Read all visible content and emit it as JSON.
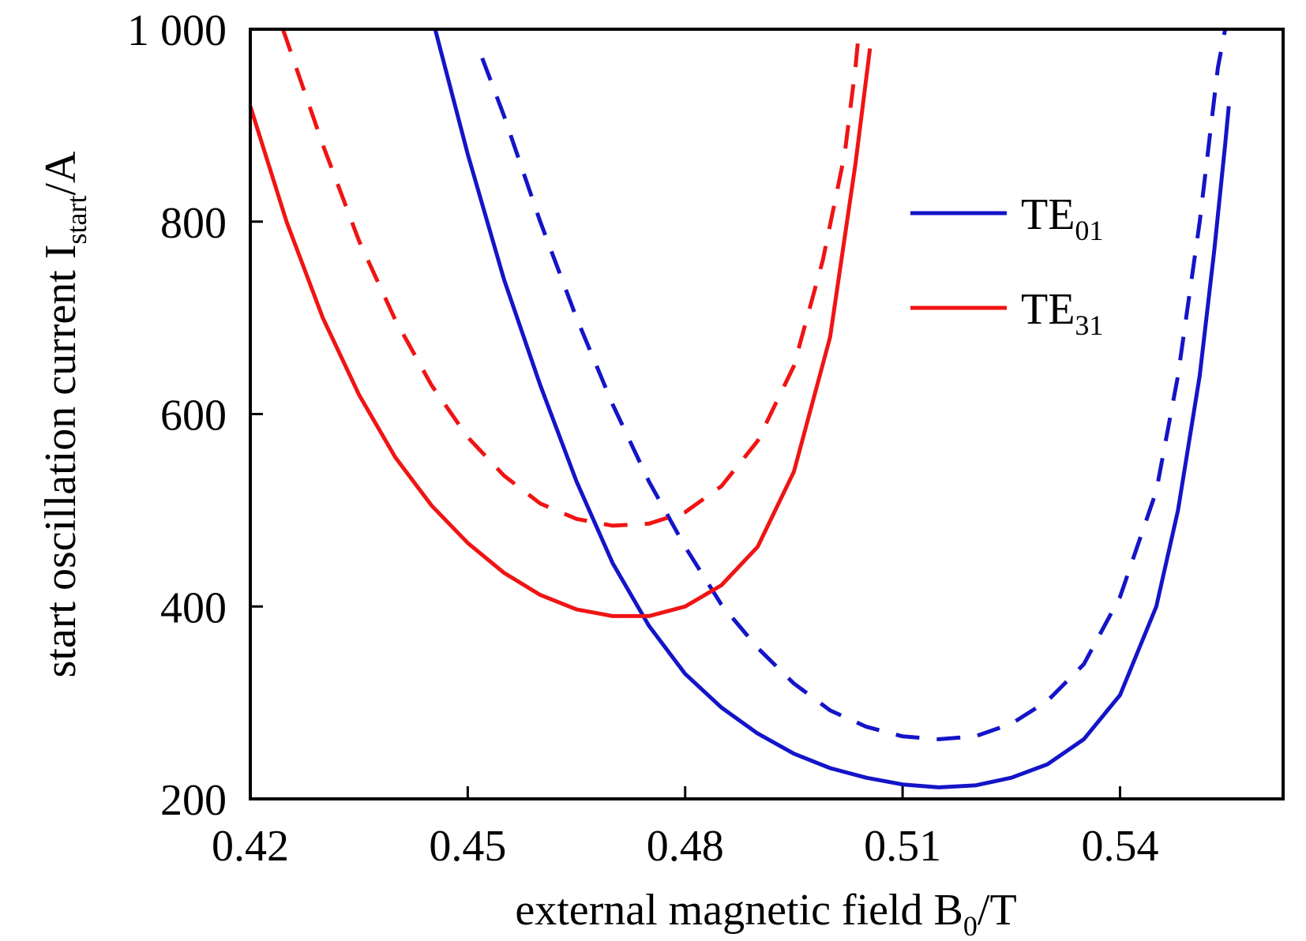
{
  "chart_data": {
    "type": "line",
    "title": "",
    "xlabel": {
      "main": "external magnetic field B",
      "sub": "0",
      "tail": "/T"
    },
    "ylabel": {
      "main": "start oscillation current I",
      "sub": "start",
      "tail": "/A"
    },
    "xlim": [
      0.42,
      0.5625
    ],
    "ylim": [
      200,
      1000
    ],
    "x_ticks": [
      0.42,
      0.45,
      0.48,
      0.51,
      0.54
    ],
    "x_tick_labels": [
      "0.42",
      "0.45",
      "0.48",
      "0.51",
      "0.54"
    ],
    "y_ticks": [
      200,
      400,
      600,
      800,
      1000
    ],
    "y_tick_labels": [
      "200",
      "400",
      "600",
      "800",
      "1 000"
    ],
    "grid": false,
    "legend_position": "right",
    "legend": [
      {
        "main": "TE",
        "sub": "01",
        "color": "#1414c8"
      },
      {
        "main": "TE",
        "sub": "31",
        "color": "#f01414"
      }
    ],
    "series": [
      {
        "mode": "TE01",
        "style": "solid",
        "color": "#1414c8",
        "points": [
          [
            0.4455,
            1000
          ],
          [
            0.45,
            870
          ],
          [
            0.455,
            740
          ],
          [
            0.46,
            630
          ],
          [
            0.465,
            530
          ],
          [
            0.47,
            445
          ],
          [
            0.475,
            380
          ],
          [
            0.48,
            330
          ],
          [
            0.485,
            295
          ],
          [
            0.49,
            268
          ],
          [
            0.495,
            247
          ],
          [
            0.5,
            232
          ],
          [
            0.505,
            222
          ],
          [
            0.51,
            215
          ],
          [
            0.515,
            212
          ],
          [
            0.52,
            214
          ],
          [
            0.525,
            222
          ],
          [
            0.53,
            236
          ],
          [
            0.535,
            262
          ],
          [
            0.54,
            308
          ],
          [
            0.545,
            400
          ],
          [
            0.548,
            500
          ],
          [
            0.551,
            640
          ],
          [
            0.553,
            770
          ],
          [
            0.5545,
            880
          ],
          [
            0.555,
            920
          ]
        ]
      },
      {
        "mode": "TE01",
        "style": "dashed",
        "color": "#1414c8",
        "points": [
          [
            0.452,
            970
          ],
          [
            0.455,
            910
          ],
          [
            0.46,
            800
          ],
          [
            0.465,
            700
          ],
          [
            0.47,
            610
          ],
          [
            0.475,
            530
          ],
          [
            0.48,
            462
          ],
          [
            0.485,
            402
          ],
          [
            0.49,
            357
          ],
          [
            0.495,
            320
          ],
          [
            0.5,
            292
          ],
          [
            0.505,
            275
          ],
          [
            0.51,
            265
          ],
          [
            0.515,
            262
          ],
          [
            0.52,
            265
          ],
          [
            0.525,
            278
          ],
          [
            0.53,
            302
          ],
          [
            0.535,
            340
          ],
          [
            0.54,
            410
          ],
          [
            0.545,
            520
          ],
          [
            0.548,
            640
          ],
          [
            0.551,
            800
          ],
          [
            0.5535,
            960
          ],
          [
            0.5545,
            1000
          ]
        ]
      },
      {
        "mode": "TE31",
        "style": "solid",
        "color": "#f01414",
        "points": [
          [
            0.42,
            920
          ],
          [
            0.425,
            800
          ],
          [
            0.43,
            700
          ],
          [
            0.435,
            620
          ],
          [
            0.44,
            555
          ],
          [
            0.445,
            505
          ],
          [
            0.45,
            466
          ],
          [
            0.455,
            435
          ],
          [
            0.46,
            412
          ],
          [
            0.465,
            397
          ],
          [
            0.47,
            390
          ],
          [
            0.475,
            390
          ],
          [
            0.48,
            400
          ],
          [
            0.485,
            422
          ],
          [
            0.49,
            462
          ],
          [
            0.495,
            540
          ],
          [
            0.5,
            680
          ],
          [
            0.5035,
            860
          ],
          [
            0.5055,
            980
          ]
        ]
      },
      {
        "mode": "TE31",
        "style": "dashed",
        "color": "#f01414",
        "points": [
          [
            0.4245,
            1000
          ],
          [
            0.43,
            880
          ],
          [
            0.435,
            780
          ],
          [
            0.44,
            698
          ],
          [
            0.445,
            630
          ],
          [
            0.45,
            576
          ],
          [
            0.455,
            536
          ],
          [
            0.46,
            507
          ],
          [
            0.465,
            491
          ],
          [
            0.47,
            484
          ],
          [
            0.475,
            486
          ],
          [
            0.48,
            498
          ],
          [
            0.485,
            525
          ],
          [
            0.49,
            572
          ],
          [
            0.495,
            650
          ],
          [
            0.499,
            760
          ],
          [
            0.502,
            870
          ],
          [
            0.5035,
            960
          ],
          [
            0.504,
            1000
          ]
        ]
      }
    ]
  }
}
